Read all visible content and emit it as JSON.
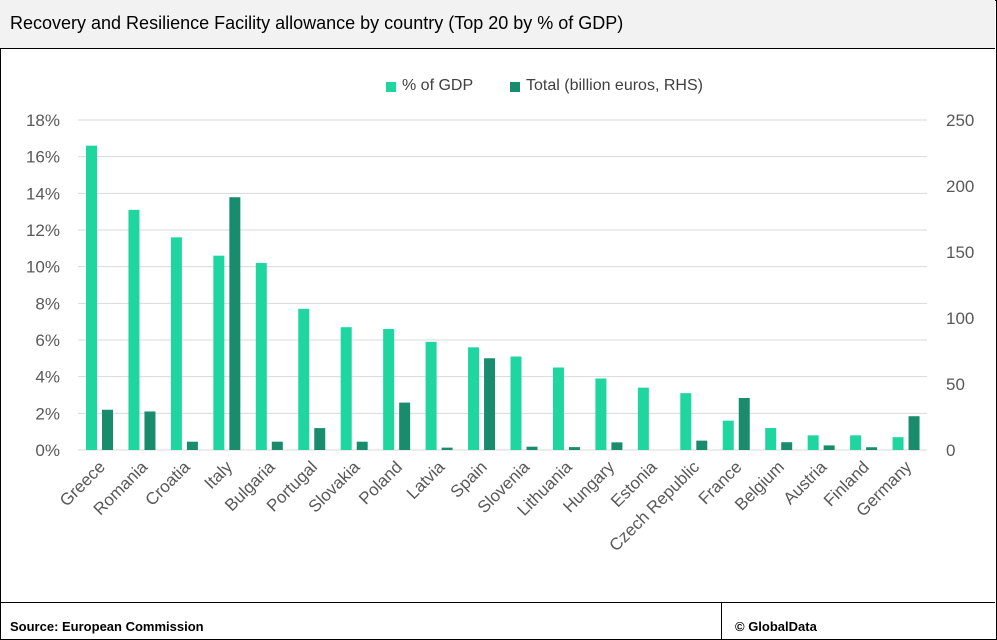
{
  "header": {
    "title": "Recovery and Resilience Facility allowance by country (Top 20 by % of GDP)"
  },
  "footer": {
    "source": "Source: European Commission",
    "copyright": "© GlobalData"
  },
  "colors": {
    "pct_gdp": "#1fd6a0",
    "total": "#1a8c6e",
    "grid": "#d9d9d9",
    "axis_text": "#595959"
  },
  "chart_data": {
    "type": "bar",
    "title": "Recovery and Resilience Facility allowance by country (Top 20 by % of GDP)",
    "categories": [
      "Greece",
      "Romania",
      "Croatia",
      "Italy",
      "Bulgaria",
      "Portugal",
      "Slovakia",
      "Poland",
      "Latvia",
      "Spain",
      "Slovenia",
      "Lithuania",
      "Hungary",
      "Estonia",
      "Czech Republic",
      "France",
      "Belgium",
      "Austria",
      "Finland",
      "Germany"
    ],
    "series": [
      {
        "name": "% of GDP",
        "axis": "left",
        "values": [
          16.6,
          13.1,
          11.6,
          10.6,
          10.2,
          7.7,
          6.7,
          6.6,
          5.9,
          5.6,
          5.1,
          4.5,
          3.9,
          3.4,
          3.1,
          1.6,
          1.2,
          0.8,
          0.8,
          0.7
        ]
      },
      {
        "name": "Total (billion euros, RHS)",
        "axis": "right",
        "values": [
          30.5,
          29.2,
          6.3,
          191.5,
          6.3,
          16.6,
          6.3,
          35.9,
          1.8,
          69.5,
          2.5,
          2.2,
          5.8,
          0,
          7.1,
          39.4,
          5.9,
          3.5,
          2.1,
          25.6
        ]
      }
    ],
    "left_axis": {
      "ylim": [
        0,
        18
      ],
      "ticks": [
        "0%",
        "2%",
        "4%",
        "6%",
        "8%",
        "10%",
        "12%",
        "14%",
        "16%",
        "18%"
      ]
    },
    "right_axis": {
      "ylim": [
        0,
        250
      ],
      "ticks": [
        "0",
        "50",
        "100",
        "150",
        "200",
        "250"
      ]
    },
    "grid": true,
    "legend": {
      "placement": "top-center",
      "entries": [
        "% of GDP",
        "Total (billion euros, RHS)"
      ]
    }
  }
}
